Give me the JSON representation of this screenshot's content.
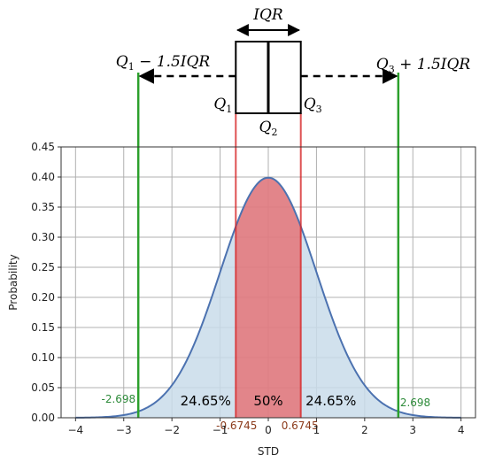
{
  "chart_data": {
    "type": "area",
    "distribution": "standard-normal",
    "xlabel": "STD",
    "ylabel": "Probability",
    "xlim": [
      -4.3,
      4.3
    ],
    "ylim": [
      0,
      0.45
    ],
    "xticks": [
      "−4",
      "−3",
      "−2",
      "−1",
      "0",
      "1",
      "2",
      "3",
      "4"
    ],
    "yticks": [
      "0.00",
      "0.05",
      "0.10",
      "0.15",
      "0.20",
      "0.25",
      "0.30",
      "0.35",
      "0.40",
      "0.45"
    ],
    "grid": true,
    "curve_x_range": [
      -4,
      4
    ],
    "quartiles": {
      "q1": -0.6745,
      "q2": 0,
      "q3": 0.6745
    },
    "whiskers": {
      "lower": -2.698,
      "upper": 2.698
    },
    "region_labels": [
      {
        "text": "24.65%",
        "x": -1.3
      },
      {
        "text": "50%",
        "x": 0
      },
      {
        "text": "24.65%",
        "x": 1.3
      }
    ],
    "value_labels": {
      "lower_whisker": "-2.698",
      "upper_whisker": "2.698",
      "q1": "-0.6745",
      "q3": "0.6745"
    },
    "boxplot_labels": {
      "iqr": "IQR",
      "lower_fence": {
        "base": "Q",
        "sub": "1",
        "rest": " − 1.5IQR"
      },
      "upper_fence": {
        "base": "Q",
        "sub": "3",
        "rest": " + 1.5IQR"
      },
      "q1": {
        "base": "Q",
        "sub": "1"
      },
      "q2": {
        "base": "Q",
        "sub": "2"
      },
      "q3": {
        "base": "Q",
        "sub": "3"
      }
    },
    "colors": {
      "curve": "#4c72b0",
      "tail_fill": "#c9dcea",
      "iqr_fill": "#e07b80",
      "quartile_line": "#d62728",
      "whisker_line": "#2ca02c",
      "grid": "#b0b0b0"
    }
  }
}
